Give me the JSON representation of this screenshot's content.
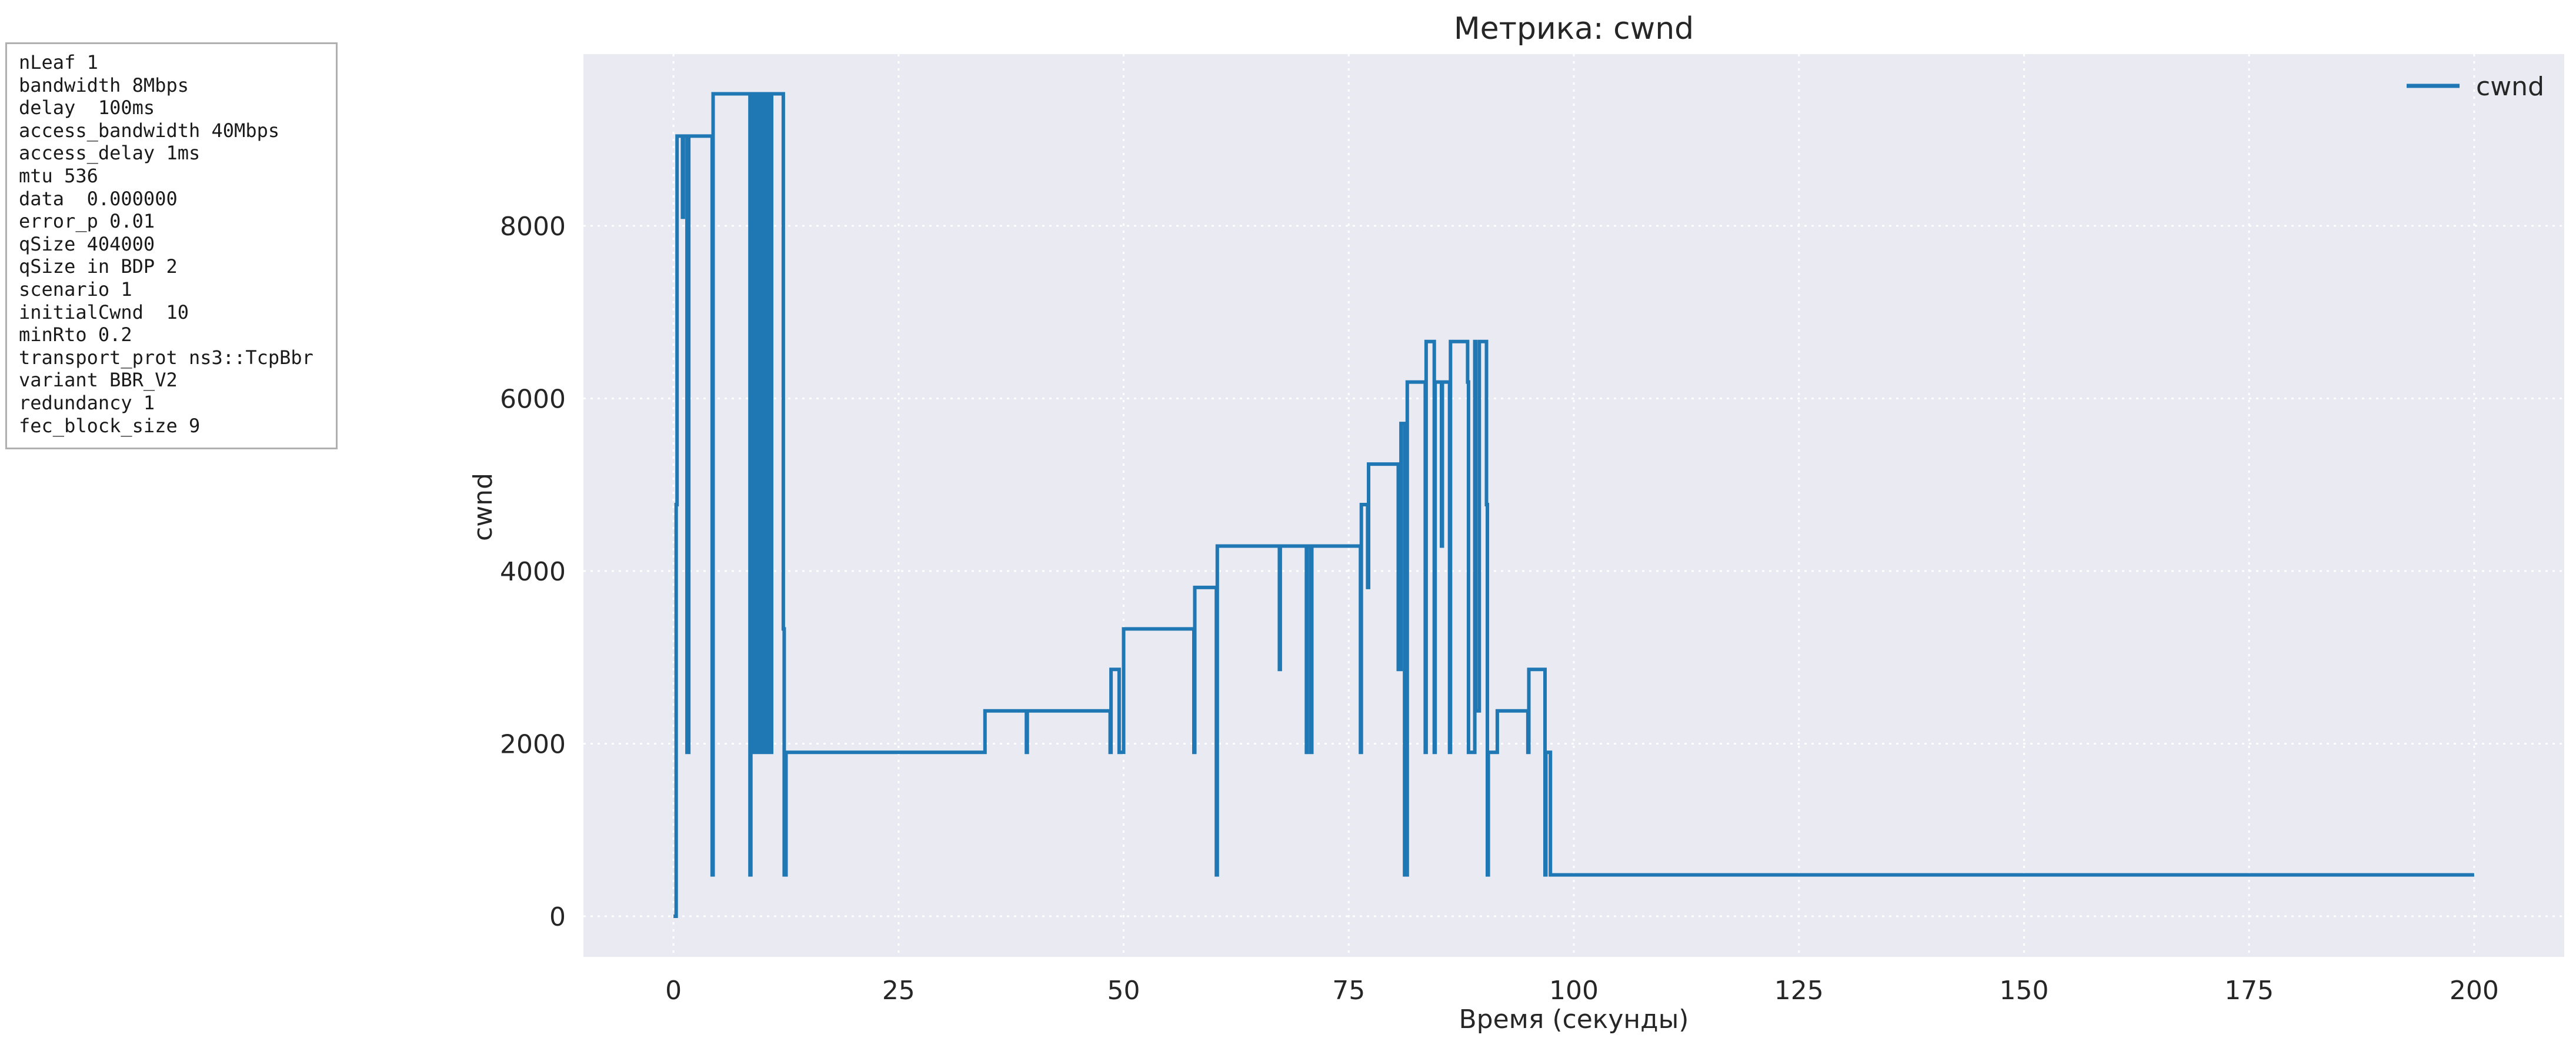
{
  "params_box": {
    "lines": [
      "nLeaf 1",
      "bandwidth 8Mbps",
      "delay  100ms",
      "access_bandwidth 40Mbps",
      "access_delay 1ms",
      "mtu 536",
      "data  0.000000",
      "error_p 0.01",
      "qSize 404000",
      "qSize in BDP 2",
      "scenario 1",
      "initialCwnd  10",
      "minRto 0.2",
      "transport_prot ns3::TcpBbr",
      "variant BBR_V2",
      "redundancy 1",
      "fec_block_size 9"
    ]
  },
  "chart_data": {
    "type": "line",
    "title": "Метрика: cwnd",
    "xlabel": "Время (секунды)",
    "ylabel": "cwnd",
    "xlim": [
      -10,
      210
    ],
    "ylim": [
      -470,
      9990
    ],
    "x_ticks": [
      0,
      25,
      50,
      75,
      100,
      125,
      150,
      175,
      200
    ],
    "y_ticks": [
      0,
      2000,
      4000,
      6000,
      8000
    ],
    "grid": true,
    "legend": {
      "position": "top-right",
      "entries": [
        "cwnd"
      ]
    },
    "background": "#eaeaf2",
    "series": [
      {
        "name": "cwnd",
        "color": "#1f77b4",
        "step": true,
        "x": [
          0,
          0.3,
          0.4,
          1.0,
          1.1,
          1.5,
          1.7,
          4.3,
          4.4,
          4.5,
          8.5,
          8.6,
          8.7,
          9.0,
          9.1,
          9.2,
          9.4,
          9.5,
          9.7,
          9.8,
          10.0,
          10.1,
          10.4,
          10.5,
          10.8,
          10.9,
          11.0,
          12.2,
          12.3,
          12.5,
          12.6,
          34.6,
          39.2,
          39.3,
          39.6,
          48.5,
          48.6,
          49.5,
          50.0,
          57.8,
          57.9,
          60.3,
          60.4,
          60.5,
          67.3,
          67.4,
          70.3,
          70.4,
          70.8,
          70.9,
          76.3,
          76.4,
          77.1,
          77.2,
          77.5,
          80.5,
          80.8,
          81.2,
          81.5,
          83.5,
          83.6,
          84.5,
          84.6,
          85.3,
          85.4,
          86.2,
          86.3,
          88.2,
          88.3,
          89.0,
          89.1,
          89.5,
          90.3,
          90.4,
          90.5,
          91.5,
          94.9,
          95.0,
          96.8,
          96.9,
          97.3,
          97.4,
          200.0
        ],
        "y": [
          0,
          4770,
          9040,
          8100,
          9040,
          1900,
          9040,
          480,
          9530,
          9530,
          480,
          9530,
          1900,
          9530,
          1900,
          9530,
          1900,
          9530,
          1900,
          9530,
          1900,
          9530,
          1900,
          9530,
          1900,
          9530,
          9530,
          3330,
          480,
          1900,
          1900,
          2380,
          1900,
          2380,
          2380,
          1900,
          2860,
          1900,
          3330,
          1900,
          3810,
          480,
          4290,
          4290,
          2860,
          4290,
          1900,
          4290,
          1900,
          4290,
          1900,
          4770,
          3810,
          5240,
          5240,
          2860,
          5710,
          480,
          6190,
          1900,
          6660,
          1900,
          6190,
          4290,
          6190,
          1900,
          6660,
          6190,
          1900,
          6660,
          2380,
          6660,
          4770,
          480,
          1900,
          2380,
          1900,
          2860,
          480,
          1900,
          1900,
          480,
          480
        ]
      }
    ]
  }
}
